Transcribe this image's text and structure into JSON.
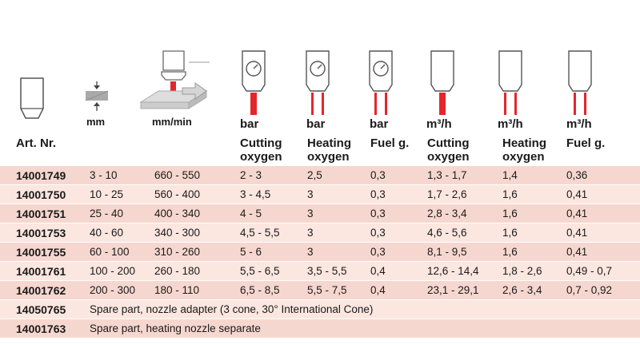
{
  "header": {
    "art_nr": "Art. Nr.",
    "units": [
      "mm",
      "mm/min",
      "bar",
      "bar",
      "bar",
      "m³/h",
      "m³/h",
      "m³/h"
    ],
    "labels": [
      {
        "l1": "Cutting",
        "l2": "oxygen"
      },
      {
        "l1": "Heating",
        "l2": "oxygen"
      },
      {
        "l1": "Fuel g.",
        "l2": ""
      },
      {
        "l1": "Cutting",
        "l2": "oxygen"
      },
      {
        "l1": "Heating",
        "l2": "oxygen"
      },
      {
        "l1": "Fuel g.",
        "l2": ""
      }
    ]
  },
  "rows": [
    {
      "art": "14001749",
      "c": [
        "3 - 10",
        "660 - 550",
        "2 - 3",
        "2,5",
        "0,3",
        "1,3 - 1,7",
        "1,4",
        "0,36"
      ]
    },
    {
      "art": "14001750",
      "c": [
        "10 - 25",
        "560 - 400",
        "3 - 4,5",
        "3",
        "0,3",
        "1,7 - 2,6",
        "1,6",
        "0,41"
      ]
    },
    {
      "art": "14001751",
      "c": [
        "25 - 40",
        "400 - 340",
        "4 - 5",
        "3",
        "0,3",
        "2,8 - 3,4",
        "1,6",
        "0,41"
      ]
    },
    {
      "art": "14001753",
      "c": [
        "40 - 60",
        "340 - 300",
        "4,5 - 5,5",
        "3",
        "0,3",
        "4,6 - 5,6",
        "1,6",
        "0,41"
      ]
    },
    {
      "art": "14001755",
      "c": [
        "60 - 100",
        "310 - 260",
        "5 - 6",
        "3",
        "0,3",
        "8,1 - 9,5",
        "1,6",
        "0,41"
      ]
    },
    {
      "art": "14001761",
      "c": [
        "100 - 200",
        "260 - 180",
        "5,5 - 6,5",
        "3,5 - 5,5",
        "0,4",
        "12,6 - 14,4",
        "1,8 - 2,6",
        "0,49 - 0,7"
      ]
    },
    {
      "art": "14001762",
      "c": [
        "200 - 300",
        "180 - 110",
        "6,5 - 8,5",
        "5,5 - 7,5",
        "0,4",
        "23,1 - 29,1",
        "2,6 - 3,4",
        "0,7 - 0,92"
      ]
    }
  ],
  "notes": [
    {
      "art": "14050765",
      "text": "Spare part, nozzle adapter (3 cone, 30° International Cone)"
    },
    {
      "art": "14001763",
      "text": "Spare part,  heating nozzle separate"
    }
  ],
  "colors": {
    "row": "#f6d7cf",
    "row_alt": "#fbe6e0",
    "flame": "#e3262b"
  },
  "icons": [
    "nozzle-icon",
    "material-thickness-icon",
    "cutting-speed-icon",
    "gauge-cutting-oxygen-icon",
    "gauge-heating-oxygen-icon",
    "gauge-fuel-gas-icon",
    "nozzle-cutting-oxygen-flow-icon",
    "nozzle-heating-oxygen-flow-icon",
    "nozzle-fuel-gas-flow-icon"
  ]
}
